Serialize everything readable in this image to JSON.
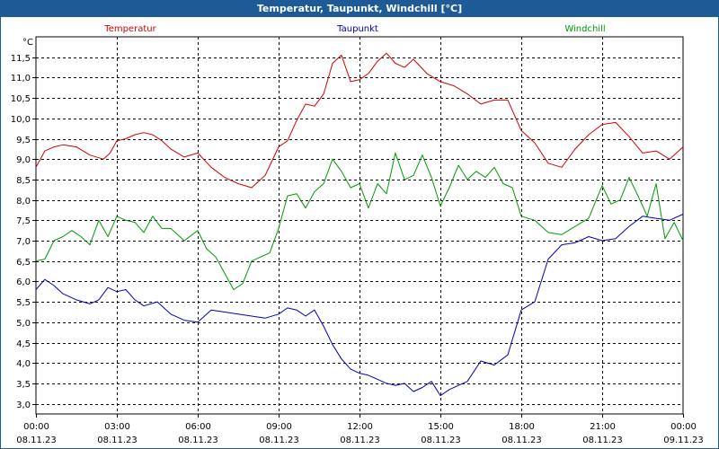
{
  "window": {
    "title": "Temperatur, Taupunkt, Windchill [°C]"
  },
  "colors": {
    "titlebar": "#1e5a96",
    "temperatur": "#d40000",
    "taupunkt": "#0000b4",
    "windchill": "#009a00",
    "grid": "#000000"
  },
  "chart_data": {
    "type": "line",
    "title": "Temperatur, Taupunkt, Windchill [°C]",
    "ylabel": "°C",
    "ylim": [
      2.75,
      12.0
    ],
    "yticks": [
      "3,0",
      "3,5",
      "4,0",
      "4,5",
      "5,0",
      "5,5",
      "6,0",
      "6,5",
      "7,0",
      "7,5",
      "8,0",
      "8,5",
      "9,0",
      "9,5",
      "10,0",
      "10,5",
      "11,0",
      "11,5"
    ],
    "xlim": [
      0,
      24
    ],
    "xticks": [
      {
        "time": "00:00",
        "date": "08.11.23"
      },
      {
        "time": "03:00",
        "date": "08.11.23"
      },
      {
        "time": "06:00",
        "date": "08.11.23"
      },
      {
        "time": "09:00",
        "date": "08.11.23"
      },
      {
        "time": "12:00",
        "date": "08.11.23"
      },
      {
        "time": "15:00",
        "date": "08.11.23"
      },
      {
        "time": "18:00",
        "date": "08.11.23"
      },
      {
        "time": "21:00",
        "date": "08.11.23"
      },
      {
        "time": "00:00",
        "date": "09.11.23"
      }
    ],
    "series": [
      {
        "name": "Temperatur",
        "x": [
          0,
          0.33,
          0.67,
          1,
          1.5,
          2,
          2.5,
          2.75,
          3,
          3.33,
          3.67,
          4,
          4.33,
          4.67,
          5,
          5.5,
          6,
          6.5,
          7,
          7.5,
          8,
          8.5,
          9,
          9.33,
          9.67,
          10,
          10.33,
          10.67,
          11,
          11.33,
          11.67,
          12,
          12.33,
          12.67,
          13,
          13.33,
          13.67,
          14,
          14.5,
          15,
          15.5,
          16,
          16.5,
          17,
          17.5,
          18,
          18.5,
          19,
          19.5,
          20,
          20.5,
          21,
          21.5,
          22,
          22.5,
          23,
          23.5,
          24
        ],
        "values": [
          8.8,
          9.2,
          9.3,
          9.35,
          9.3,
          9.1,
          9.0,
          9.15,
          9.45,
          9.5,
          9.6,
          9.65,
          9.6,
          9.45,
          9.25,
          9.05,
          9.15,
          8.8,
          8.55,
          8.4,
          8.3,
          8.6,
          9.3,
          9.45,
          9.95,
          10.35,
          10.3,
          10.6,
          11.35,
          11.55,
          10.9,
          10.95,
          11.1,
          11.4,
          11.6,
          11.35,
          11.25,
          11.45,
          11.1,
          10.9,
          10.8,
          10.6,
          10.35,
          10.45,
          10.45,
          9.7,
          9.4,
          8.9,
          8.8,
          9.25,
          9.6,
          9.85,
          9.9,
          9.55,
          9.15,
          9.2,
          9.0,
          9.3
        ]
      },
      {
        "name": "Taupunkt",
        "x": [
          0,
          0.33,
          0.67,
          1,
          1.5,
          2,
          2.33,
          2.67,
          3,
          3.33,
          3.67,
          4,
          4.5,
          5,
          5.5,
          6,
          6.5,
          7,
          7.5,
          8,
          8.5,
          9,
          9.33,
          9.67,
          10,
          10.33,
          10.67,
          11,
          11.33,
          11.67,
          12,
          12.33,
          12.67,
          13,
          13.33,
          13.67,
          14,
          14.33,
          14.67,
          15,
          15.33,
          15.67,
          16,
          16.5,
          17,
          17.5,
          18,
          18.5,
          19,
          19.5,
          20,
          20.5,
          21,
          21.5,
          22,
          22.5,
          23,
          23.5,
          24
        ],
        "values": [
          5.8,
          6.05,
          5.9,
          5.7,
          5.55,
          5.45,
          5.55,
          5.85,
          5.75,
          5.8,
          5.55,
          5.4,
          5.5,
          5.2,
          5.05,
          5.0,
          5.3,
          5.25,
          5.2,
          5.15,
          5.1,
          5.2,
          5.35,
          5.3,
          5.15,
          5.3,
          4.9,
          4.45,
          4.1,
          3.85,
          3.75,
          3.7,
          3.6,
          3.5,
          3.45,
          3.5,
          3.3,
          3.4,
          3.55,
          3.2,
          3.35,
          3.45,
          3.55,
          4.05,
          3.95,
          4.2,
          5.3,
          5.5,
          6.55,
          6.9,
          6.95,
          7.1,
          7.0,
          7.05,
          7.35,
          7.6,
          7.55,
          7.5,
          7.65
        ]
      },
      {
        "name": "Windchill",
        "x": [
          0,
          0.33,
          0.67,
          1,
          1.33,
          1.67,
          2,
          2.33,
          2.67,
          3,
          3.33,
          3.67,
          4,
          4.33,
          4.67,
          5,
          5.5,
          6,
          6.33,
          6.67,
          7,
          7.33,
          7.67,
          8,
          8.33,
          8.67,
          9,
          9.33,
          9.67,
          10,
          10.33,
          10.67,
          11,
          11.33,
          11.67,
          12,
          12.33,
          12.67,
          13,
          13.33,
          13.67,
          14,
          14.33,
          14.67,
          15,
          15.33,
          15.67,
          16,
          16.33,
          16.67,
          17,
          17.33,
          17.67,
          18,
          18.5,
          19,
          19.5,
          20,
          20.5,
          21,
          21.33,
          21.67,
          22,
          22.33,
          22.67,
          23,
          23.33,
          23.67,
          24
        ],
        "values": [
          6.5,
          6.55,
          7.0,
          7.1,
          7.25,
          7.1,
          6.9,
          7.5,
          7.1,
          7.6,
          7.5,
          7.45,
          7.2,
          7.6,
          7.3,
          7.3,
          7.0,
          7.25,
          6.8,
          6.6,
          6.2,
          5.8,
          5.95,
          6.5,
          6.6,
          6.7,
          7.3,
          8.1,
          8.15,
          7.8,
          8.2,
          8.4,
          9.0,
          8.7,
          8.3,
          8.4,
          7.8,
          8.4,
          8.15,
          9.15,
          8.5,
          8.6,
          9.1,
          8.55,
          7.85,
          8.3,
          8.85,
          8.5,
          8.7,
          8.55,
          8.8,
          8.4,
          8.3,
          7.6,
          7.5,
          7.2,
          7.15,
          7.35,
          7.55,
          8.35,
          7.9,
          8.0,
          8.55,
          8.1,
          7.6,
          8.4,
          7.05,
          7.45,
          7.0
        ]
      }
    ]
  }
}
